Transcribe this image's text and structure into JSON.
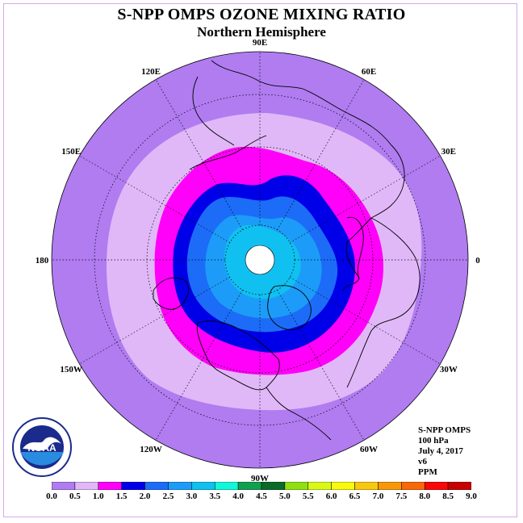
{
  "title": "S-NPP OMPS OZONE MIXING RATIO",
  "subtitle": "Northern Hemisphere",
  "longitude_labels": [
    "90E",
    "60E",
    "30E",
    "0",
    "30W",
    "60W",
    "90W",
    "120W",
    "150W",
    "180",
    "150E",
    "120E"
  ],
  "info": {
    "instrument": "S-NPP OMPS",
    "pressure": "100 hPa",
    "date": "July 4, 2017",
    "version": "v6",
    "units": "PPM"
  },
  "logo_text": "NOAA",
  "colorbar": {
    "ticks": [
      "0.0",
      "0.5",
      "1.0",
      "1.5",
      "2.0",
      "2.5",
      "3.0",
      "3.5",
      "4.0",
      "4.5",
      "5.0",
      "5.5",
      "6.0",
      "6.5",
      "7.0",
      "7.5",
      "8.0",
      "8.5",
      "9.0"
    ],
    "colors": [
      "#b07cf0",
      "#e0b8f8",
      "#ff00f8",
      "#0000e8",
      "#1c6cf8",
      "#1c9cf8",
      "#10c0f0",
      "#10f8d8",
      "#10a050",
      "#0a6a2a",
      "#90e010",
      "#d8f818",
      "#f8f810",
      "#f8c810",
      "#f89808",
      "#f86808",
      "#f80808",
      "#c80000"
    ],
    "final_color": "#804020"
  },
  "map_colors": {
    "outer": "#b07cf0",
    "light_purple": "#e0b8f8",
    "magenta": "#ff00f8",
    "dark_blue": "#0000e8",
    "blue": "#1c6cf8",
    "light_blue": "#1c9cf8",
    "cyan": "#10c0f0",
    "pole": "#ffffff"
  }
}
